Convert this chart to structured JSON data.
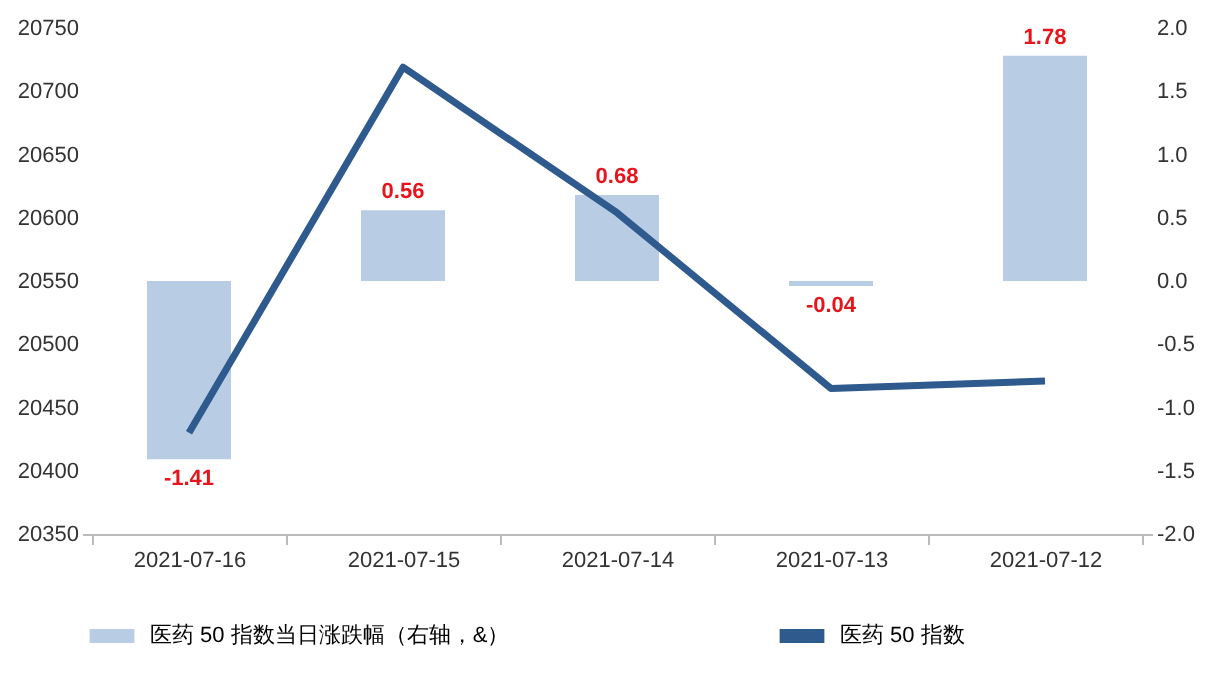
{
  "chart_data": {
    "type": "bar",
    "categories": [
      "2021-07-16",
      "2021-07-15",
      "2021-07-14",
      "2021-07-13",
      "2021-07-12"
    ],
    "series": [
      {
        "name": "医药 50 指数当日涨跌幅（右轴，&）",
        "axis": "y2",
        "color": "#b8cce4",
        "values": [
          -1.41,
          0.56,
          0.68,
          -0.04,
          1.78
        ],
        "value_labels": [
          "-1.41",
          "0.56",
          "0.68",
          "-0.04",
          "1.78"
        ]
      },
      {
        "name": "医药 50 指数",
        "type": "line",
        "color": "#2e5a8e",
        "values": [
          20430,
          20719,
          20604,
          20465,
          20471
        ]
      }
    ],
    "ylim": [
      20350,
      20750
    ],
    "yticks": [
      20350,
      20400,
      20450,
      20500,
      20550,
      20600,
      20650,
      20700,
      20750
    ],
    "y2lim": [
      -2,
      2
    ],
    "y2ticks": [
      {
        "value": -2,
        "label": "-2.0"
      },
      -1.5,
      {
        "value": -1,
        "label": "-1.0"
      },
      -0.5,
      {
        "value": 0,
        "label": "0.0"
      },
      0.5,
      {
        "value": 1,
        "label": "1.0"
      },
      1.5,
      {
        "value": 2,
        "label": "2.0"
      }
    ],
    "legend": "bottom",
    "grid": false
  }
}
